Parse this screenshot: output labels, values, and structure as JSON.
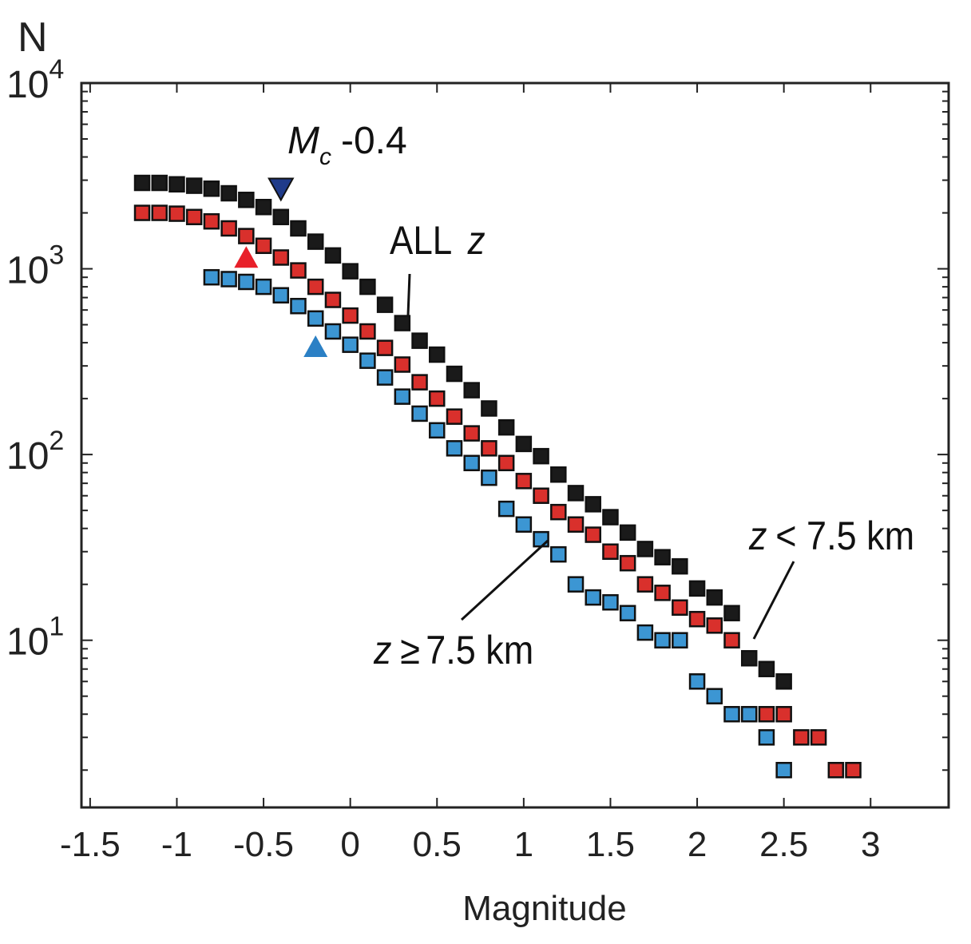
{
  "chart_data": {
    "type": "scatter",
    "title": "",
    "xlabel": "Magnitude",
    "ylabel": "N",
    "xlim": [
      -1.55,
      3.45
    ],
    "ylim_log10": [
      0.1,
      4.0
    ],
    "yscale": "log",
    "grid": false,
    "xticks": [
      -1.5,
      -1,
      -0.5,
      0,
      0.5,
      1,
      1.5,
      2,
      2.5,
      3
    ],
    "xtick_labels": [
      "-1.5",
      "-1",
      "-0.5",
      "0",
      "0.5",
      "1",
      "1.5",
      "2",
      "2.5",
      "3"
    ],
    "yticks": [
      {
        "base": "10",
        "exp": "1",
        "value": 10
      },
      {
        "base": "10",
        "exp": "2",
        "value": 100
      },
      {
        "base": "10",
        "exp": "3",
        "value": 1000
      },
      {
        "base": "10",
        "exp": "4",
        "value": 10000
      }
    ],
    "series": [
      {
        "name": "ALL z",
        "color": "#1a1a1a",
        "x": [
          -1.2,
          -1.1,
          -1.0,
          -0.9,
          -0.8,
          -0.7,
          -0.6,
          -0.5,
          -0.4,
          -0.3,
          -0.2,
          -0.1,
          0.0,
          0.1,
          0.2,
          0.3,
          0.4,
          0.5,
          0.6,
          0.7,
          0.8,
          0.9,
          1.0,
          1.1,
          1.2,
          1.3,
          1.4,
          1.5,
          1.6,
          1.7,
          1.8,
          1.9,
          2.0,
          2.1,
          2.2,
          2.3,
          2.4,
          2.5
        ],
        "y": [
          2900,
          2900,
          2850,
          2800,
          2700,
          2550,
          2350,
          2150,
          1900,
          1650,
          1400,
          1180,
          970,
          800,
          640,
          510,
          410,
          345,
          272,
          222,
          177,
          140,
          114,
          98,
          78,
          62,
          54,
          46,
          38,
          31,
          28,
          25,
          19,
          17,
          14,
          8,
          7,
          6
        ]
      },
      {
        "name": "z < 7.5 km",
        "color": "#d9302c",
        "x": [
          -1.2,
          -1.1,
          -1.0,
          -0.9,
          -0.8,
          -0.7,
          -0.6,
          -0.5,
          -0.4,
          -0.3,
          -0.2,
          -0.1,
          0.0,
          0.1,
          0.2,
          0.3,
          0.4,
          0.5,
          0.6,
          0.7,
          0.8,
          0.9,
          1.0,
          1.1,
          1.2,
          1.3,
          1.4,
          1.5,
          1.6,
          1.7,
          1.8,
          1.9,
          2.0,
          2.1,
          2.2,
          2.3,
          2.4,
          2.5,
          2.6,
          2.7,
          2.8,
          2.9
        ],
        "y": [
          2000,
          2000,
          1980,
          1900,
          1800,
          1650,
          1500,
          1330,
          1150,
          980,
          800,
          680,
          560,
          460,
          375,
          305,
          245,
          200,
          160,
          130,
          108,
          90,
          72,
          60,
          49,
          42,
          37,
          30,
          26,
          20,
          18,
          15,
          13,
          12,
          10,
          4,
          4,
          4,
          3,
          3,
          2,
          2
        ]
      },
      {
        "name": "z ≥ 7.5 km",
        "color": "#3c96d3",
        "x": [
          -0.8,
          -0.7,
          -0.6,
          -0.5,
          -0.4,
          -0.3,
          -0.2,
          -0.1,
          0.0,
          0.1,
          0.2,
          0.3,
          0.4,
          0.5,
          0.6,
          0.7,
          0.8,
          0.9,
          1.0,
          1.1,
          1.2,
          1.3,
          1.4,
          1.5,
          1.6,
          1.7,
          1.8,
          1.9,
          2.0,
          2.1,
          2.2,
          2.3,
          2.4,
          2.5
        ],
        "y": [
          900,
          880,
          850,
          800,
          720,
          630,
          540,
          460,
          390,
          320,
          260,
          205,
          166,
          135,
          108,
          90,
          75,
          51,
          42,
          35,
          29,
          20,
          17,
          16,
          14,
          11,
          10,
          10,
          6,
          5,
          4,
          4,
          3,
          2
        ]
      }
    ],
    "markers": [
      {
        "name": "Mc marker ALL z",
        "shape": "triangle-down",
        "color": "#1f3b8a",
        "x": -0.4,
        "y": 2700
      },
      {
        "name": "Mc marker z < 7.5 km",
        "shape": "triangle-up",
        "color": "#e8202a",
        "x": -0.6,
        "y": 1150
      },
      {
        "name": "Mc marker z ≥ 7.5 km",
        "shape": "triangle-up",
        "color": "#2b80c5",
        "x": -0.2,
        "y": 380
      }
    ],
    "annotations": {
      "mc": {
        "symbol": "M",
        "subscript": "c",
        "value": "-0.4"
      },
      "all": {
        "text": "ALL",
        "z": "z"
      },
      "shallow": {
        "z": "z",
        "text": "< 7.5 km"
      },
      "deep": {
        "z": "z",
        "op": "≥",
        "text": "7.5 km"
      }
    }
  }
}
